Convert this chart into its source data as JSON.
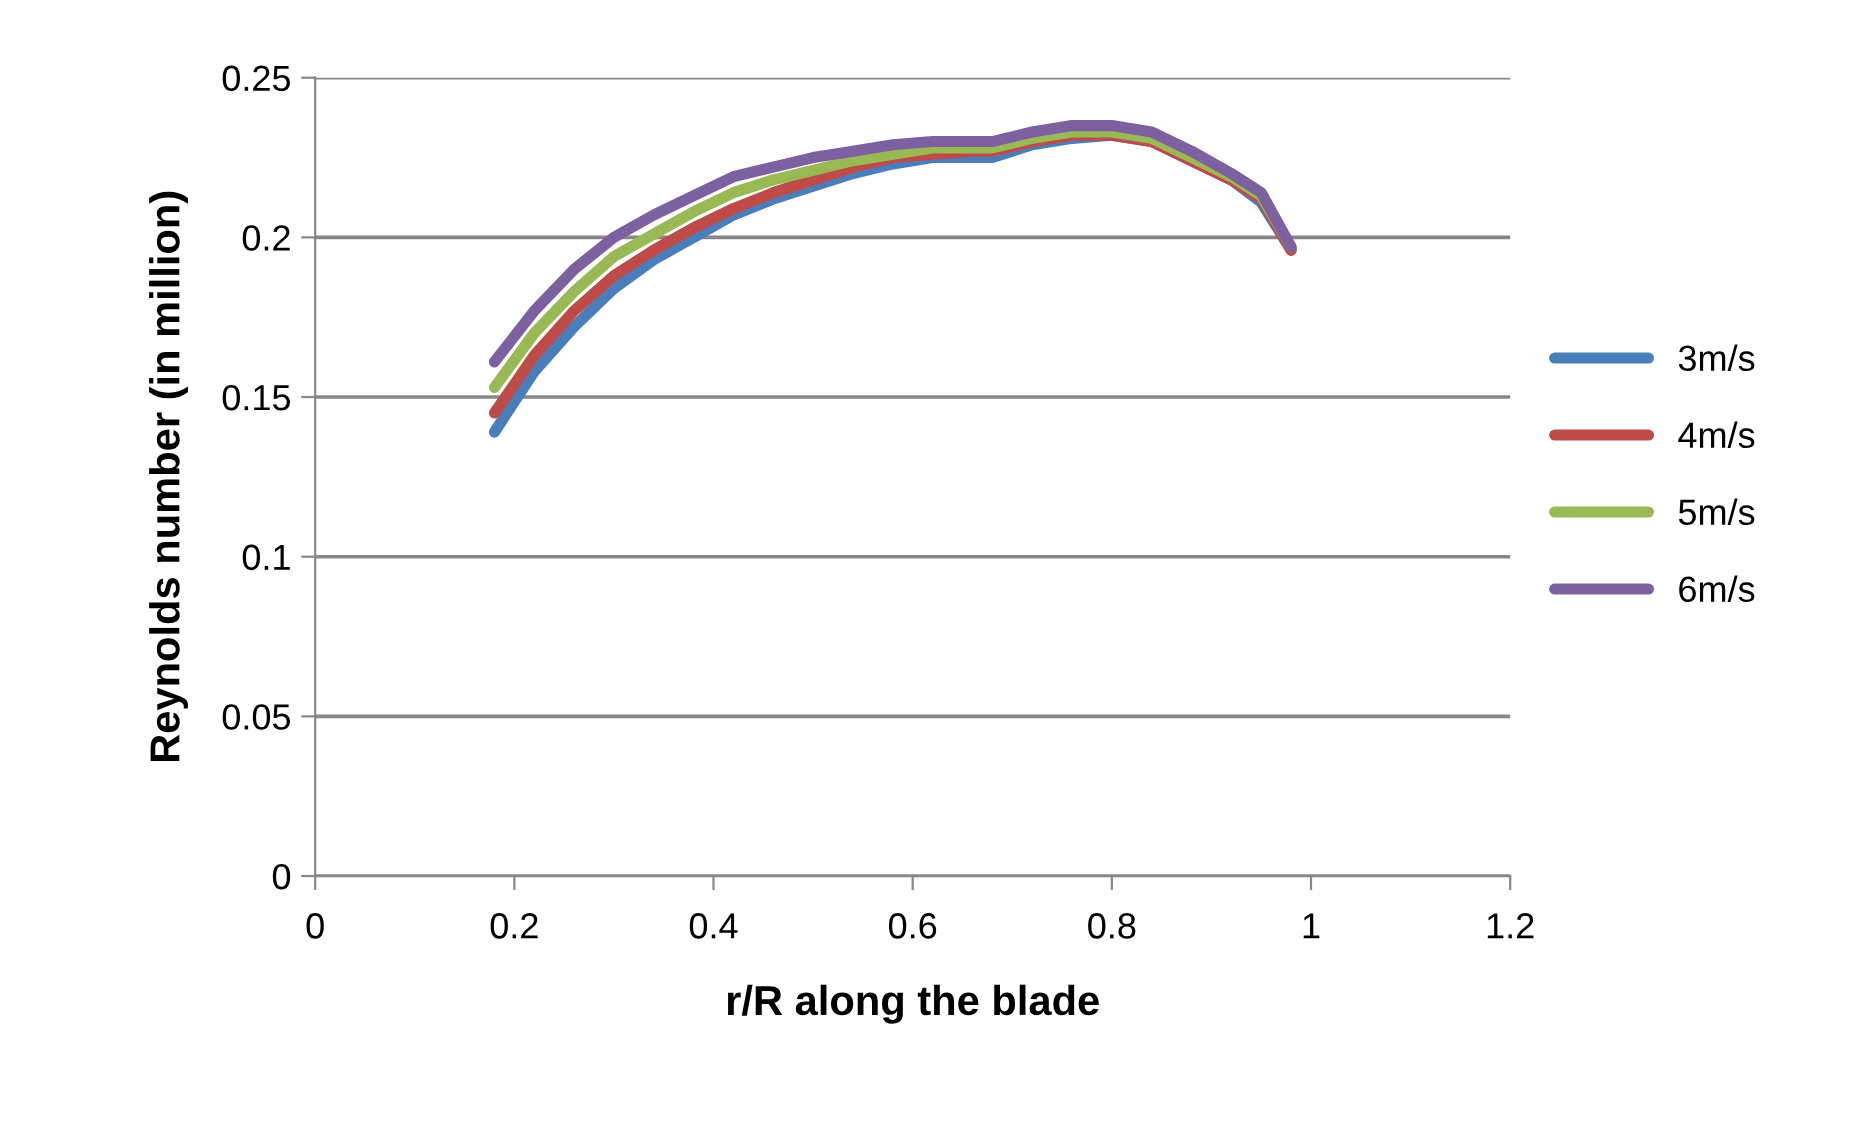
{
  "chart_data": {
    "type": "line",
    "xlabel": "r/R along the blade",
    "ylabel": "Reynolds number (in million)",
    "x": [
      0.18,
      0.22,
      0.26,
      0.3,
      0.34,
      0.38,
      0.42,
      0.46,
      0.5,
      0.54,
      0.58,
      0.62,
      0.66,
      0.68,
      0.72,
      0.76,
      0.8,
      0.84,
      0.88,
      0.92,
      0.95,
      0.98
    ],
    "series": [
      {
        "name": "3m/s",
        "color": "#4a7ebb",
        "values": [
          0.139,
          0.158,
          0.172,
          0.184,
          0.193,
          0.2,
          0.207,
          0.212,
          0.216,
          0.22,
          0.223,
          0.225,
          0.225,
          0.225,
          0.229,
          0.231,
          0.232,
          0.23,
          0.224,
          0.218,
          0.211,
          0.196
        ]
      },
      {
        "name": "4m/s",
        "color": "#be4b48",
        "values": [
          0.145,
          0.163,
          0.177,
          0.188,
          0.196,
          0.203,
          0.209,
          0.214,
          0.218,
          0.222,
          0.225,
          0.226,
          0.227,
          0.227,
          0.23,
          0.232,
          0.232,
          0.23,
          0.224,
          0.218,
          0.212,
          0.196
        ]
      },
      {
        "name": "5m/s",
        "color": "#98b954",
        "values": [
          0.153,
          0.17,
          0.183,
          0.194,
          0.201,
          0.208,
          0.214,
          0.218,
          0.221,
          0.224,
          0.226,
          0.228,
          0.228,
          0.228,
          0.231,
          0.233,
          0.233,
          0.231,
          0.225,
          0.219,
          0.213,
          0.197
        ]
      },
      {
        "name": "6m/s",
        "color": "#7d60a0",
        "values": [
          0.161,
          0.177,
          0.19,
          0.2,
          0.207,
          0.213,
          0.219,
          0.222,
          0.225,
          0.227,
          0.229,
          0.23,
          0.23,
          0.23,
          0.233,
          0.235,
          0.235,
          0.233,
          0.227,
          0.22,
          0.214,
          0.197
        ]
      }
    ],
    "xlim": [
      0,
      1.2
    ],
    "xticks": [
      0,
      0.2,
      0.4,
      0.6,
      0.8,
      1,
      1.2
    ],
    "ylim": [
      0,
      0.25
    ],
    "yticks": [
      0,
      0.05,
      0.1,
      0.15,
      0.2,
      0.25
    ],
    "grid": "y",
    "legend": "right",
    "marker": "none",
    "line_style": "solid"
  }
}
